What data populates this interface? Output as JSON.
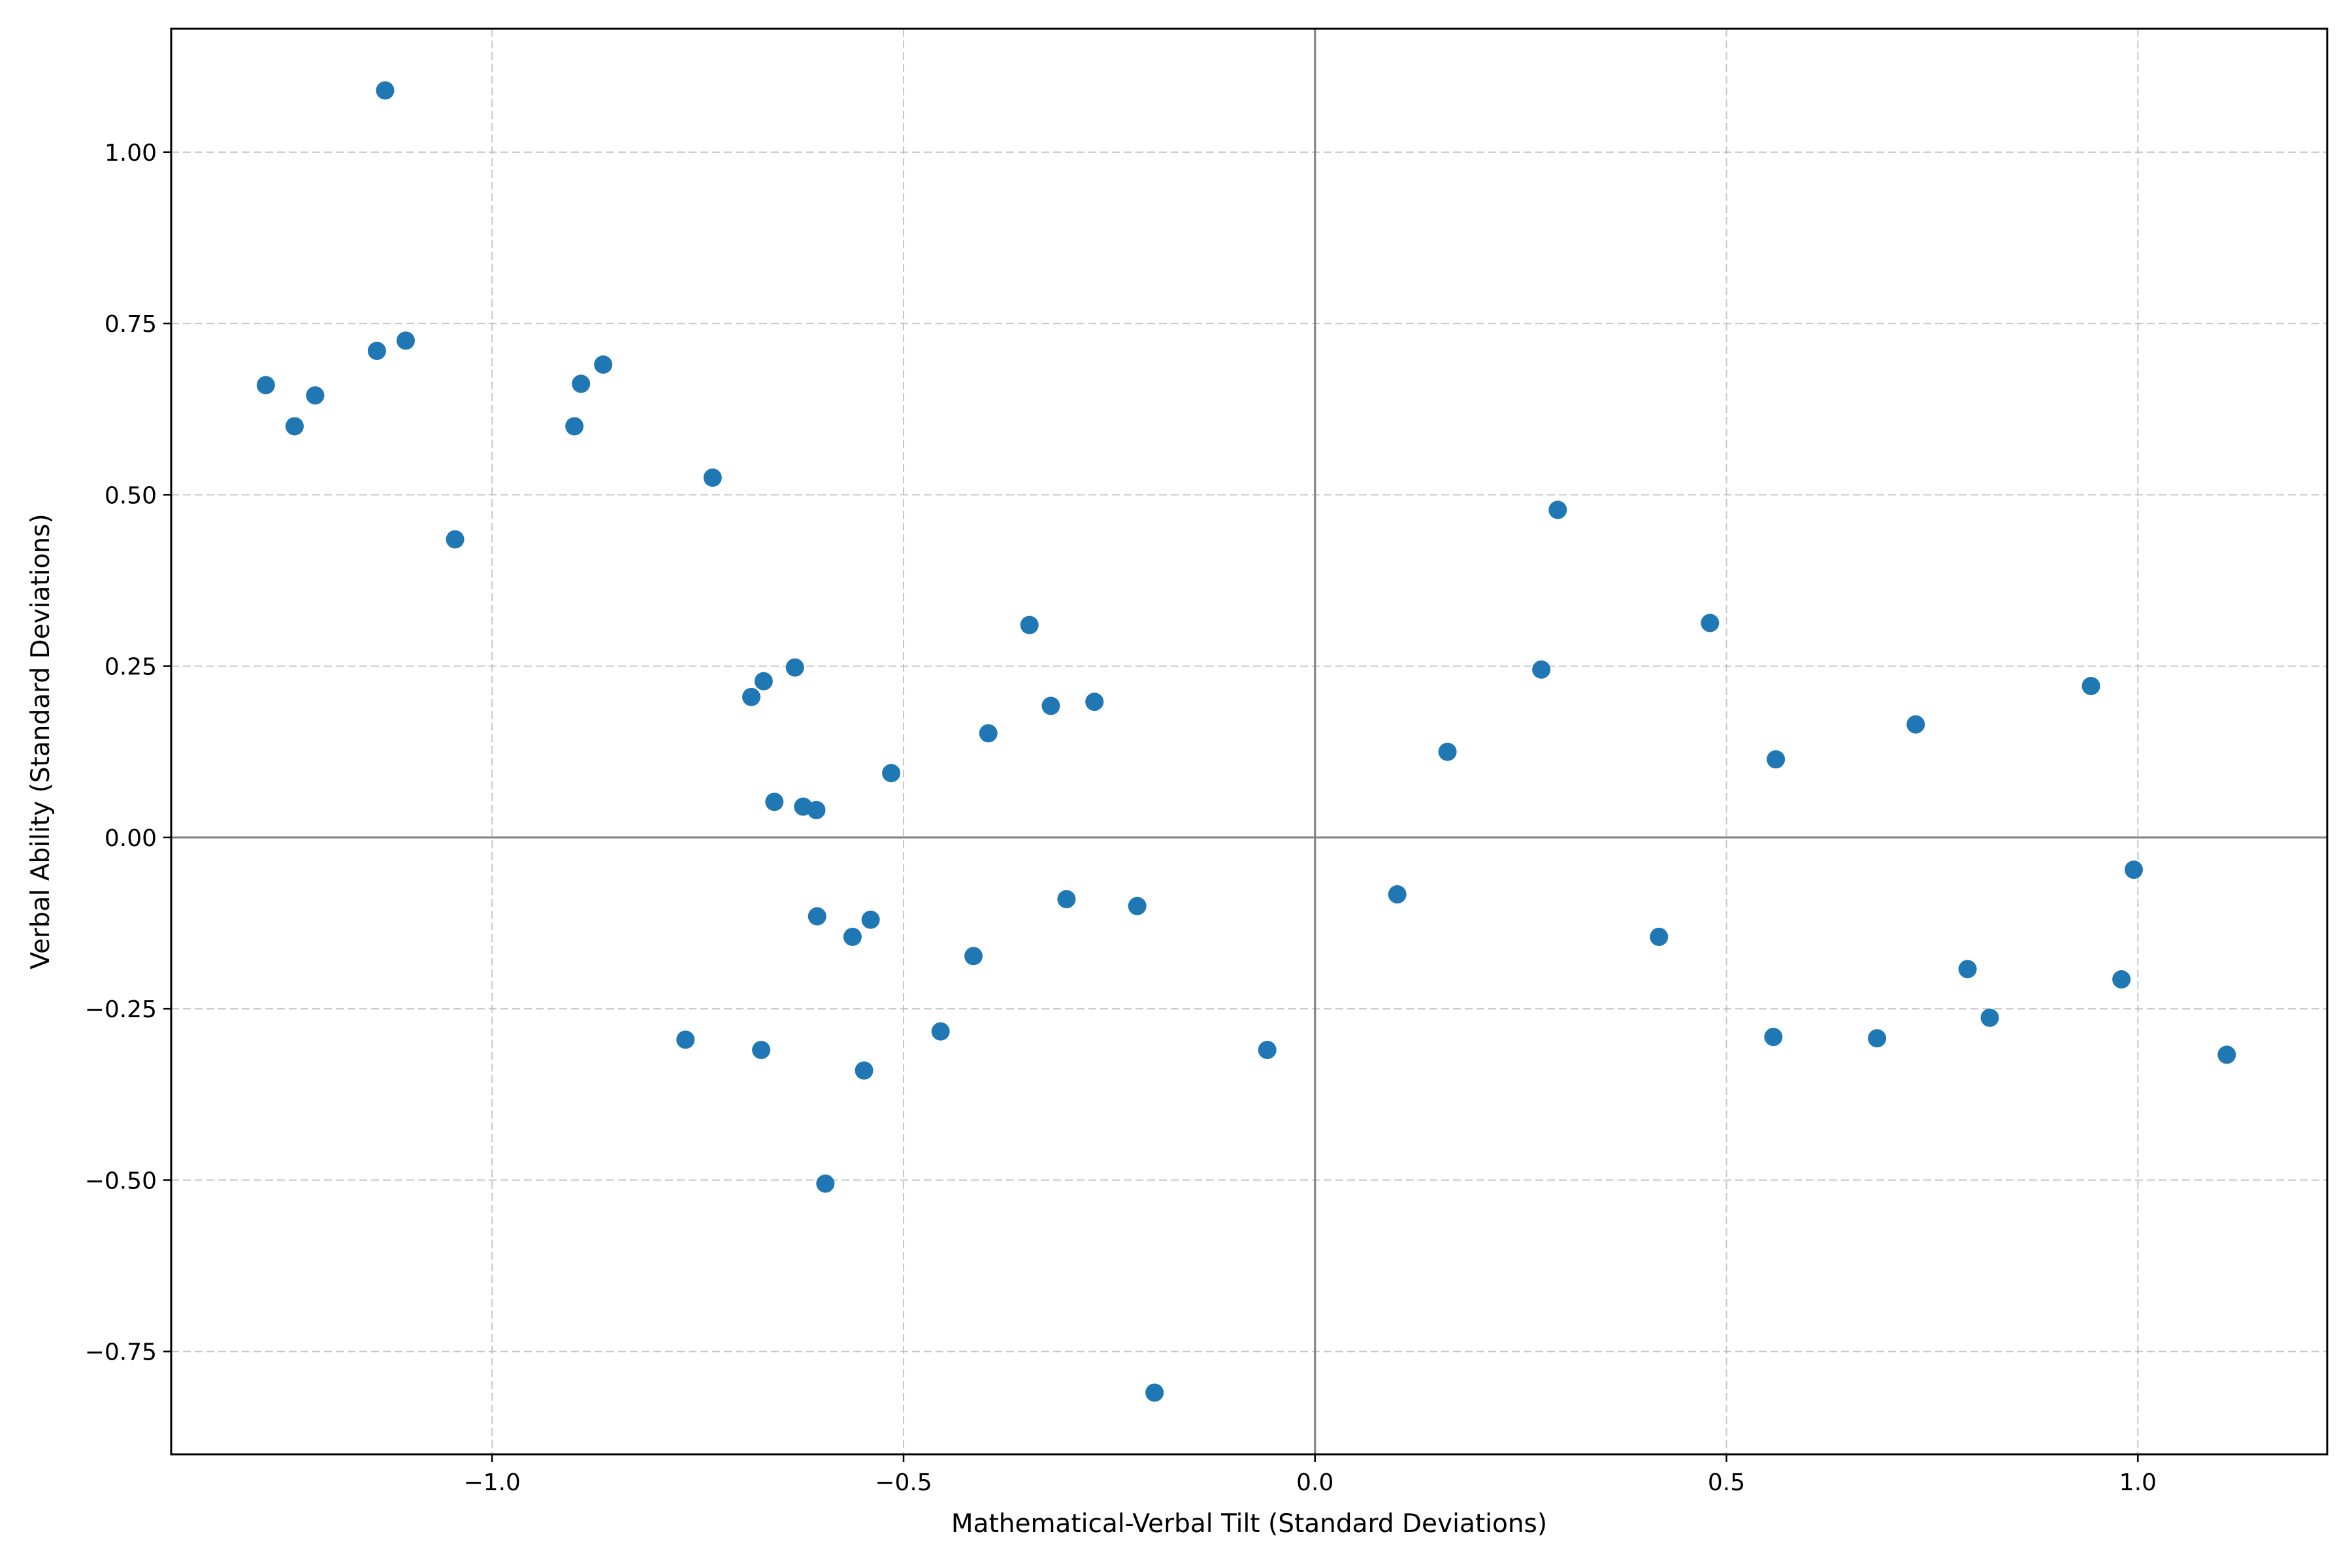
{
  "chart_data": {
    "type": "scatter",
    "title": "",
    "xlabel": "Mathematical-Verbal Tilt (Standard Deviations)",
    "ylabel": "Verbal Ability (Standard Deviations)",
    "xlim": [
      -1.39,
      1.23
    ],
    "ylim": [
      -0.9,
      1.18
    ],
    "x_ticks": [
      -1.0,
      -0.5,
      0.0,
      0.5,
      1.0
    ],
    "x_tick_labels": [
      "−1.0",
      "−0.5",
      "0.0",
      "0.5",
      "1.0"
    ],
    "y_ticks": [
      -0.75,
      -0.5,
      -0.25,
      0.0,
      0.25,
      0.5,
      0.75,
      1.0
    ],
    "y_tick_labels": [
      "−0.75",
      "−0.50",
      "−0.25",
      "0.00",
      "0.25",
      "0.50",
      "0.75",
      "1.00"
    ],
    "grid": true,
    "reference_lines": {
      "x": 0,
      "y": 0
    },
    "color": "#1f77b4",
    "points": [
      {
        "x": -1.275,
        "y": 0.66
      },
      {
        "x": -1.24,
        "y": 0.6
      },
      {
        "x": -1.215,
        "y": 0.645
      },
      {
        "x": -1.14,
        "y": 0.71
      },
      {
        "x": -1.13,
        "y": 1.09
      },
      {
        "x": -1.105,
        "y": 0.725
      },
      {
        "x": -1.045,
        "y": 0.435
      },
      {
        "x": -0.9,
        "y": 0.6
      },
      {
        "x": -0.892,
        "y": 0.662
      },
      {
        "x": -0.865,
        "y": 0.69
      },
      {
        "x": -0.765,
        "y": -0.295
      },
      {
        "x": -0.732,
        "y": 0.525
      },
      {
        "x": -0.685,
        "y": 0.205
      },
      {
        "x": -0.673,
        "y": -0.31
      },
      {
        "x": -0.67,
        "y": 0.228
      },
      {
        "x": -0.657,
        "y": 0.052
      },
      {
        "x": -0.632,
        "y": 0.248
      },
      {
        "x": -0.622,
        "y": 0.045
      },
      {
        "x": -0.606,
        "y": 0.04
      },
      {
        "x": -0.605,
        "y": -0.115
      },
      {
        "x": -0.595,
        "y": -0.505
      },
      {
        "x": -0.562,
        "y": -0.145
      },
      {
        "x": -0.548,
        "y": -0.34
      },
      {
        "x": -0.54,
        "y": -0.12
      },
      {
        "x": -0.515,
        "y": 0.094
      },
      {
        "x": -0.455,
        "y": -0.283
      },
      {
        "x": -0.415,
        "y": -0.173
      },
      {
        "x": -0.397,
        "y": 0.152
      },
      {
        "x": -0.347,
        "y": 0.31
      },
      {
        "x": -0.321,
        "y": 0.192
      },
      {
        "x": -0.302,
        "y": -0.09
      },
      {
        "x": -0.268,
        "y": 0.198
      },
      {
        "x": -0.216,
        "y": -0.1
      },
      {
        "x": -0.195,
        "y": -0.81
      },
      {
        "x": -0.058,
        "y": -0.31
      },
      {
        "x": 0.1,
        "y": -0.083
      },
      {
        "x": 0.161,
        "y": 0.125
      },
      {
        "x": 0.275,
        "y": 0.245
      },
      {
        "x": 0.295,
        "y": 0.478
      },
      {
        "x": 0.418,
        "y": -0.145
      },
      {
        "x": 0.48,
        "y": 0.313
      },
      {
        "x": 0.557,
        "y": -0.291
      },
      {
        "x": 0.56,
        "y": 0.114
      },
      {
        "x": 0.683,
        "y": -0.293
      },
      {
        "x": 0.73,
        "y": 0.165
      },
      {
        "x": 0.793,
        "y": -0.192
      },
      {
        "x": 0.82,
        "y": -0.263
      },
      {
        "x": 0.943,
        "y": 0.221
      },
      {
        "x": 0.98,
        "y": -0.207
      },
      {
        "x": 0.995,
        "y": -0.047
      },
      {
        "x": 1.108,
        "y": -0.317
      }
    ]
  }
}
